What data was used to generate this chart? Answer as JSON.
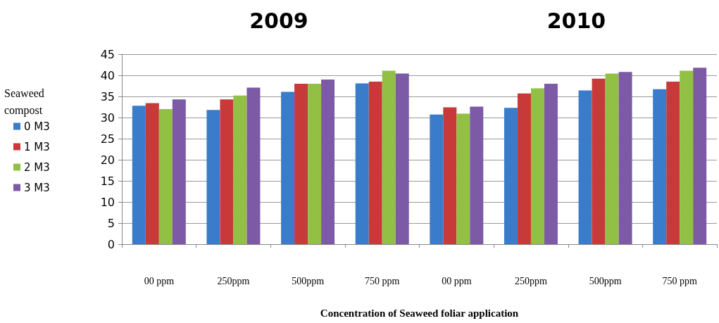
{
  "chart_data": {
    "type": "bar",
    "annotations": [
      "2009",
      "2010"
    ],
    "xlabel": "Concentration of Seaweed foliar application",
    "legend_title": "Seaweed compost",
    "categories": [
      "00 ppm",
      "250ppm",
      "500ppm",
      "750 ppm",
      "00 ppm",
      "250ppm",
      "500ppm",
      "750 ppm"
    ],
    "series": [
      {
        "name": "0 M3",
        "color": "#3a7cc9",
        "values": [
          32.8,
          31.8,
          36.1,
          38.1,
          30.7,
          32.3,
          36.4,
          36.7
        ]
      },
      {
        "name": "1 M3",
        "color": "#c83a3a",
        "values": [
          33.4,
          34.3,
          38.0,
          38.5,
          32.4,
          35.7,
          39.2,
          38.5
        ]
      },
      {
        "name": "2 M3",
        "color": "#92c045",
        "values": [
          32.0,
          35.2,
          38.0,
          41.1,
          30.9,
          36.9,
          40.4,
          41.1
        ]
      },
      {
        "name": "3 M3",
        "color": "#7d5aa6",
        "values": [
          34.3,
          37.1,
          39.0,
          40.4,
          32.6,
          38.0,
          40.8,
          41.8
        ]
      }
    ],
    "ylim": [
      0,
      45
    ],
    "yticks": [
      0,
      5,
      10,
      15,
      20,
      25,
      30,
      35,
      40,
      45
    ],
    "grid": "y",
    "legend": "left"
  }
}
